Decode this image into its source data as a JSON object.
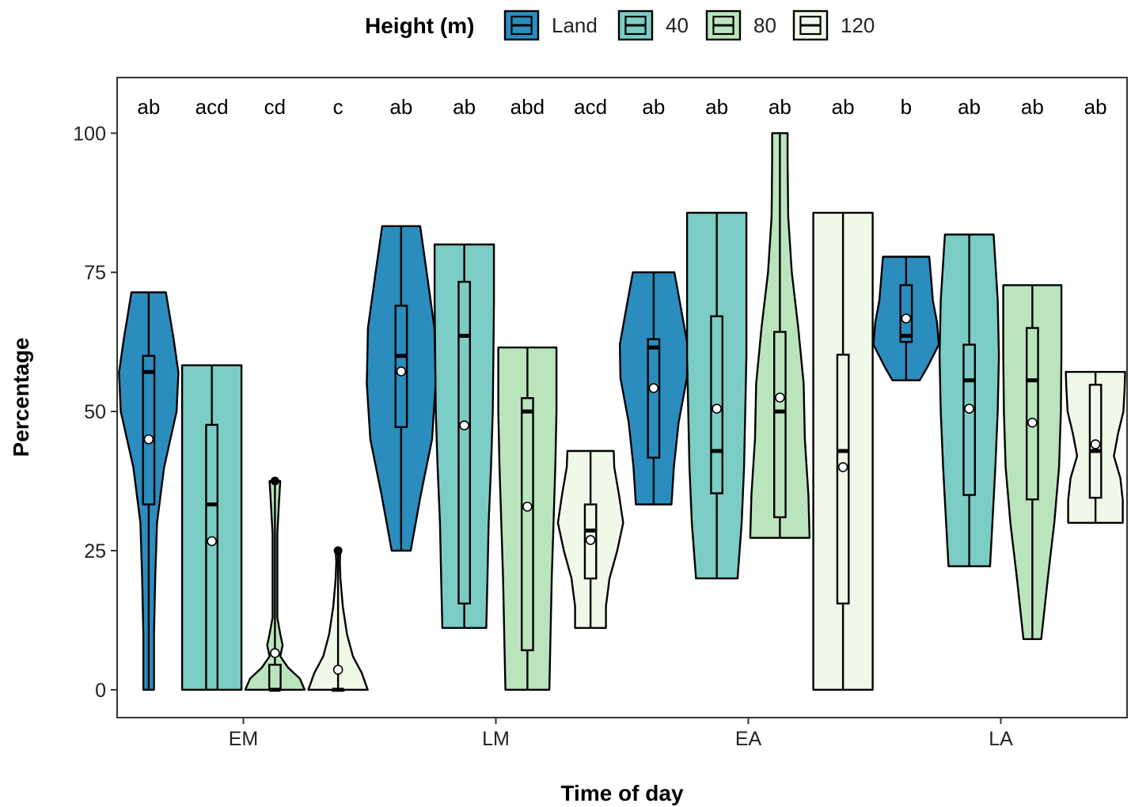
{
  "chart_data": {
    "type": "violin",
    "xlabel": "Time of day",
    "ylabel": "Percentage",
    "categories": [
      "EM",
      "LM",
      "EA",
      "LA"
    ],
    "ylim": [
      -5,
      110
    ],
    "yticks": [
      0,
      25,
      50,
      75,
      100
    ],
    "grid": false,
    "legend": {
      "title": "Height (m)",
      "position": "top"
    },
    "series": [
      {
        "name": "Land",
        "color": "#2b8cbe",
        "groups": [
          {
            "category": "EM",
            "min": 0,
            "max": 71.4,
            "q1": 33.3,
            "median": 57.1,
            "q3": 60,
            "mean": 45,
            "label": "ab",
            "density": [
              [
                0,
                0.09
              ],
              [
                10,
                0.09
              ],
              [
                20,
                0.11
              ],
              [
                30,
                0.14
              ],
              [
                40,
                0.26
              ],
              [
                50,
                0.47
              ],
              [
                57,
                0.5
              ],
              [
                63,
                0.42
              ],
              [
                71.4,
                0.29
              ]
            ]
          },
          {
            "category": "LM",
            "min": 25,
            "max": 83.3,
            "q1": 47.2,
            "median": 60,
            "q3": 69,
            "mean": 57.2,
            "label": "ab",
            "density": [
              [
                25,
                0.16
              ],
              [
                35,
                0.33
              ],
              [
                45,
                0.52
              ],
              [
                55,
                0.58
              ],
              [
                65,
                0.56
              ],
              [
                75,
                0.43
              ],
              [
                83.3,
                0.32
              ]
            ]
          },
          {
            "category": "EA",
            "min": 33.3,
            "max": 75,
            "q1": 41.7,
            "median": 61.5,
            "q3": 63,
            "mean": 54.2,
            "label": "ab",
            "density": [
              [
                33.3,
                0.3
              ],
              [
                40,
                0.34
              ],
              [
                48,
                0.42
              ],
              [
                56,
                0.56
              ],
              [
                62,
                0.57
              ],
              [
                68,
                0.47
              ],
              [
                75,
                0.35
              ]
            ]
          },
          {
            "category": "LA",
            "min": 55.6,
            "max": 77.8,
            "q1": 62.5,
            "median": 63.6,
            "q3": 72.7,
            "mean": 66.7,
            "label": "b",
            "density": [
              [
                55.6,
                0.23
              ],
              [
                58,
                0.36
              ],
              [
                62,
                0.55
              ],
              [
                66,
                0.52
              ],
              [
                70,
                0.45
              ],
              [
                74,
                0.42
              ],
              [
                77.8,
                0.39
              ]
            ]
          }
        ]
      },
      {
        "name": "40",
        "color": "#7bccc4",
        "groups": [
          {
            "category": "EM",
            "min": 0,
            "max": 58.3,
            "q1": 0,
            "median": 33.3,
            "q3": 47.6,
            "mean": 26.7,
            "label": "acd",
            "density": [
              [
                0,
                0.5
              ],
              [
                10,
                0.5
              ],
              [
                20,
                0.5
              ],
              [
                30,
                0.5
              ],
              [
                40,
                0.5
              ],
              [
                50,
                0.5
              ],
              [
                58.3,
                0.5
              ]
            ]
          },
          {
            "category": "LM",
            "min": 11.1,
            "max": 80,
            "q1": 15.5,
            "median": 63.6,
            "q3": 73.3,
            "mean": 47.5,
            "label": "ab",
            "density": [
              [
                11.1,
                0.37
              ],
              [
                20,
                0.39
              ],
              [
                30,
                0.41
              ],
              [
                40,
                0.45
              ],
              [
                50,
                0.48
              ],
              [
                60,
                0.49
              ],
              [
                70,
                0.5
              ],
              [
                80,
                0.5
              ]
            ]
          },
          {
            "category": "EA",
            "min": 20,
            "max": 85.7,
            "q1": 35.3,
            "median": 42.9,
            "q3": 67.1,
            "mean": 50.5,
            "label": "ab",
            "density": [
              [
                20,
                0.35
              ],
              [
                30,
                0.42
              ],
              [
                40,
                0.46
              ],
              [
                50,
                0.48
              ],
              [
                60,
                0.5
              ],
              [
                70,
                0.5
              ],
              [
                80,
                0.5
              ],
              [
                85.7,
                0.5
              ]
            ]
          },
          {
            "category": "LA",
            "min": 22.2,
            "max": 81.8,
            "q1": 35,
            "median": 55.6,
            "q3": 62,
            "mean": 50.5,
            "label": "ab",
            "density": [
              [
                22.2,
                0.35
              ],
              [
                30,
                0.39
              ],
              [
                40,
                0.44
              ],
              [
                50,
                0.48
              ],
              [
                60,
                0.5
              ],
              [
                70,
                0.48
              ],
              [
                81.8,
                0.41
              ]
            ]
          }
        ]
      },
      {
        "name": "80",
        "color": "#bae4bc",
        "groups": [
          {
            "category": "EM",
            "min": 0,
            "max": 37.5,
            "q1": 0,
            "median": 0,
            "q3": 4.5,
            "mean": 6.6,
            "label": "cd",
            "outliers": [
              37.5
            ],
            "density": [
              [
                0,
                0.5
              ],
              [
                2,
                0.42
              ],
              [
                4,
                0.22
              ],
              [
                6,
                0.09
              ],
              [
                8,
                0.13
              ],
              [
                10,
                0.09
              ],
              [
                13,
                0.04
              ],
              [
                20,
                0.04
              ],
              [
                28,
                0.04
              ],
              [
                34,
                0.07
              ],
              [
                37.5,
                0.09
              ]
            ]
          },
          {
            "category": "LM",
            "min": 0,
            "max": 61.5,
            "q1": 7.1,
            "median": 50,
            "q3": 52.4,
            "mean": 32.9,
            "label": "abd",
            "density": [
              [
                0,
                0.37
              ],
              [
                10,
                0.39
              ],
              [
                20,
                0.41
              ],
              [
                30,
                0.44
              ],
              [
                40,
                0.47
              ],
              [
                50,
                0.49
              ],
              [
                61.5,
                0.49
              ]
            ]
          },
          {
            "category": "EA",
            "min": 27.3,
            "max": 100,
            "q1": 31,
            "median": 50,
            "q3": 64.3,
            "mean": 52.5,
            "label": "ab",
            "density": [
              [
                27.3,
                0.5
              ],
              [
                35,
                0.48
              ],
              [
                45,
                0.42
              ],
              [
                55,
                0.4
              ],
              [
                65,
                0.31
              ],
              [
                75,
                0.2
              ],
              [
                85,
                0.14
              ],
              [
                95,
                0.13
              ],
              [
                100,
                0.13
              ]
            ]
          },
          {
            "category": "LA",
            "min": 9.1,
            "max": 72.7,
            "q1": 34.2,
            "median": 55.6,
            "q3": 65,
            "mean": 48,
            "label": "ab",
            "density": [
              [
                9.1,
                0.15
              ],
              [
                20,
                0.26
              ],
              [
                30,
                0.37
              ],
              [
                40,
                0.45
              ],
              [
                50,
                0.48
              ],
              [
                60,
                0.49
              ],
              [
                72.7,
                0.49
              ]
            ]
          }
        ]
      },
      {
        "name": "120",
        "color": "#f0f9e8",
        "groups": [
          {
            "category": "EM",
            "min": 0,
            "max": 25,
            "q1": 0,
            "median": 0,
            "q3": 0,
            "mean": 3.6,
            "label": "c",
            "outliers": [
              25
            ],
            "density": [
              [
                0,
                0.5
              ],
              [
                3,
                0.4
              ],
              [
                6,
                0.25
              ],
              [
                10,
                0.15
              ],
              [
                15,
                0.08
              ],
              [
                20,
                0.04
              ],
              [
                23,
                0.03
              ],
              [
                25,
                0.04
              ]
            ]
          },
          {
            "category": "LM",
            "min": 11.1,
            "max": 42.9,
            "q1": 20,
            "median": 28.6,
            "q3": 33.3,
            "mean": 26.9,
            "label": "acd",
            "density": [
              [
                11.1,
                0.26
              ],
              [
                15,
                0.26
              ],
              [
                20,
                0.32
              ],
              [
                25,
                0.45
              ],
              [
                30,
                0.55
              ],
              [
                35,
                0.48
              ],
              [
                40,
                0.4
              ],
              [
                42.9,
                0.39
              ]
            ]
          },
          {
            "category": "EA",
            "min": 0,
            "max": 85.7,
            "q1": 15.5,
            "median": 42.9,
            "q3": 60.2,
            "mean": 40,
            "label": "ab",
            "density": [
              [
                0,
                0.5
              ],
              [
                10,
                0.5
              ],
              [
                20,
                0.5
              ],
              [
                30,
                0.5
              ],
              [
                40,
                0.5
              ],
              [
                50,
                0.5
              ],
              [
                60,
                0.5
              ],
              [
                70,
                0.5
              ],
              [
                80,
                0.5
              ],
              [
                85.7,
                0.5
              ]
            ]
          },
          {
            "category": "LA",
            "min": 30,
            "max": 57.1,
            "q1": 34.5,
            "median": 42.9,
            "q3": 54.8,
            "mean": 44.1,
            "label": "ab",
            "density": [
              [
                30,
                0.46
              ],
              [
                34,
                0.46
              ],
              [
                38,
                0.42
              ],
              [
                42,
                0.31
              ],
              [
                46,
                0.38
              ],
              [
                50,
                0.47
              ],
              [
                54,
                0.49
              ],
              [
                57.1,
                0.5
              ]
            ]
          }
        ]
      }
    ]
  }
}
